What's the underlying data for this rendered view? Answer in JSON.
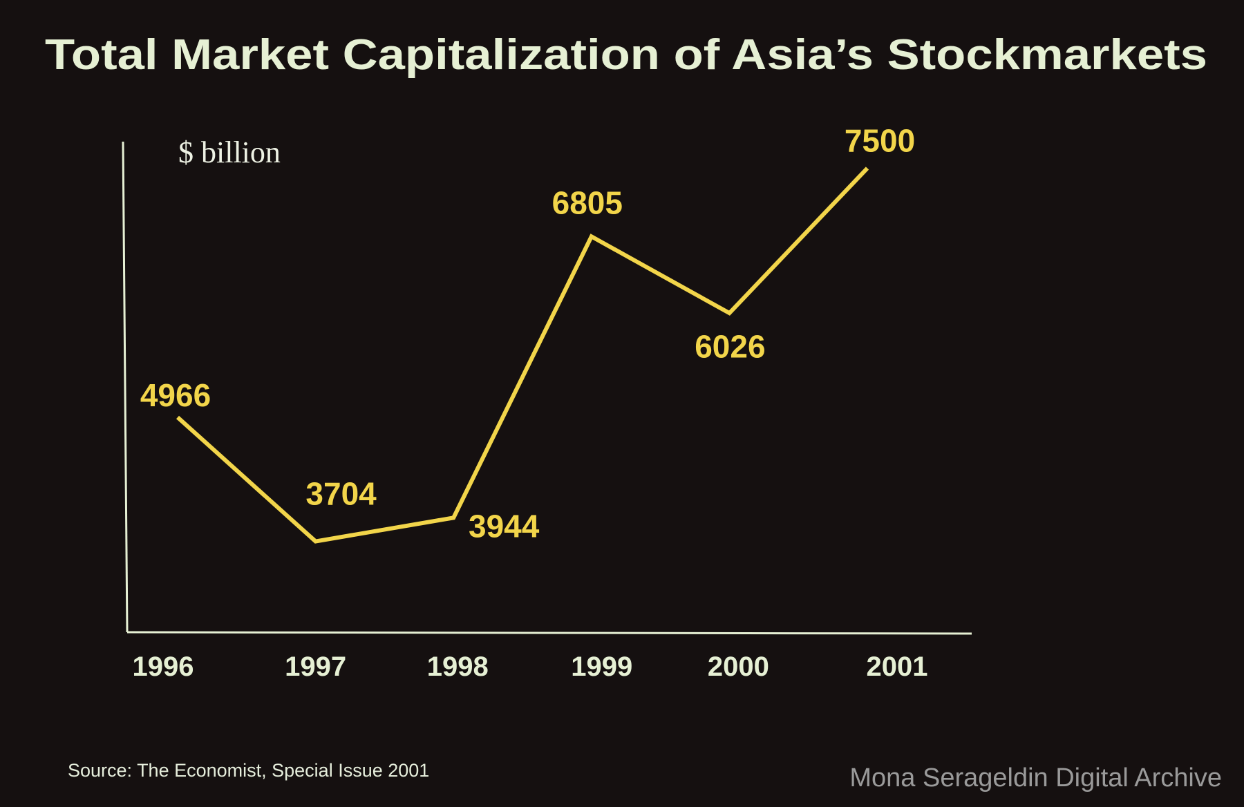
{
  "chart_data": {
    "type": "line",
    "title": "Total Market Capitalization of Asia’s Stockmarkets",
    "ylabel": "$ billion",
    "xlabel": "",
    "categories": [
      "1996",
      "1997",
      "1998",
      "1999",
      "2000",
      "2001"
    ],
    "x": [
      1996,
      1997,
      1998,
      1999,
      2000,
      2001
    ],
    "values": [
      4966,
      3704,
      3944,
      6805,
      6026,
      7500
    ],
    "data_labels": [
      "4966",
      "3704",
      "3944",
      "6805",
      "6026",
      "7500"
    ],
    "ylim": [
      2780,
      7770
    ],
    "grid": false,
    "legend": "none",
    "line_color": "#f2d54a",
    "axis_color": "#e6f0d4",
    "background": "#151010"
  },
  "source": "Source: The Economist, Special Issue 2001",
  "credit": "Mona Serageldin Digital Archive"
}
